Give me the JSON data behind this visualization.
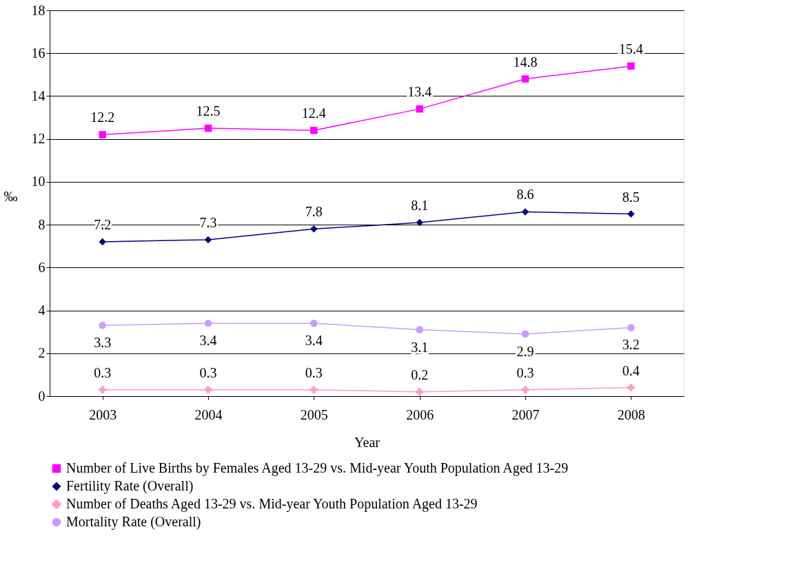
{
  "chart_data": {
    "type": "line",
    "xlabel": "Year",
    "ylabel": "‰",
    "categories": [
      "2003",
      "2004",
      "2005",
      "2006",
      "2007",
      "2008"
    ],
    "series": [
      {
        "name": "Number of Live Births by Females Aged 13-29 vs. Mid-year Youth Population Aged 13-29",
        "color": "#ff00ff",
        "marker": "square",
        "values": [
          12.2,
          12.5,
          12.4,
          13.4,
          14.8,
          15.4
        ]
      },
      {
        "name": "Fertility Rate (Overall)",
        "color": "#000080",
        "marker": "diamond",
        "values": [
          7.2,
          7.3,
          7.8,
          8.1,
          8.6,
          8.5
        ]
      },
      {
        "name": "Number of Deaths Aged 13-29 vs. Mid-year Youth Population Aged 13-29",
        "color": "#ff99cc",
        "marker": "cross",
        "values": [
          0.3,
          0.3,
          0.3,
          0.2,
          0.3,
          0.4
        ]
      },
      {
        "name": "Mortality Rate (Overall)",
        "color": "#cc99ff",
        "marker": "circle",
        "values": [
          3.3,
          3.4,
          3.4,
          3.1,
          2.9,
          3.2
        ]
      }
    ],
    "ylim": [
      0,
      18
    ],
    "yticks": [
      0,
      2,
      4,
      6,
      8,
      10,
      12,
      14,
      16,
      18
    ],
    "grid": "y",
    "legend": "bottom",
    "data_labels": true,
    "line_style": "solid"
  }
}
